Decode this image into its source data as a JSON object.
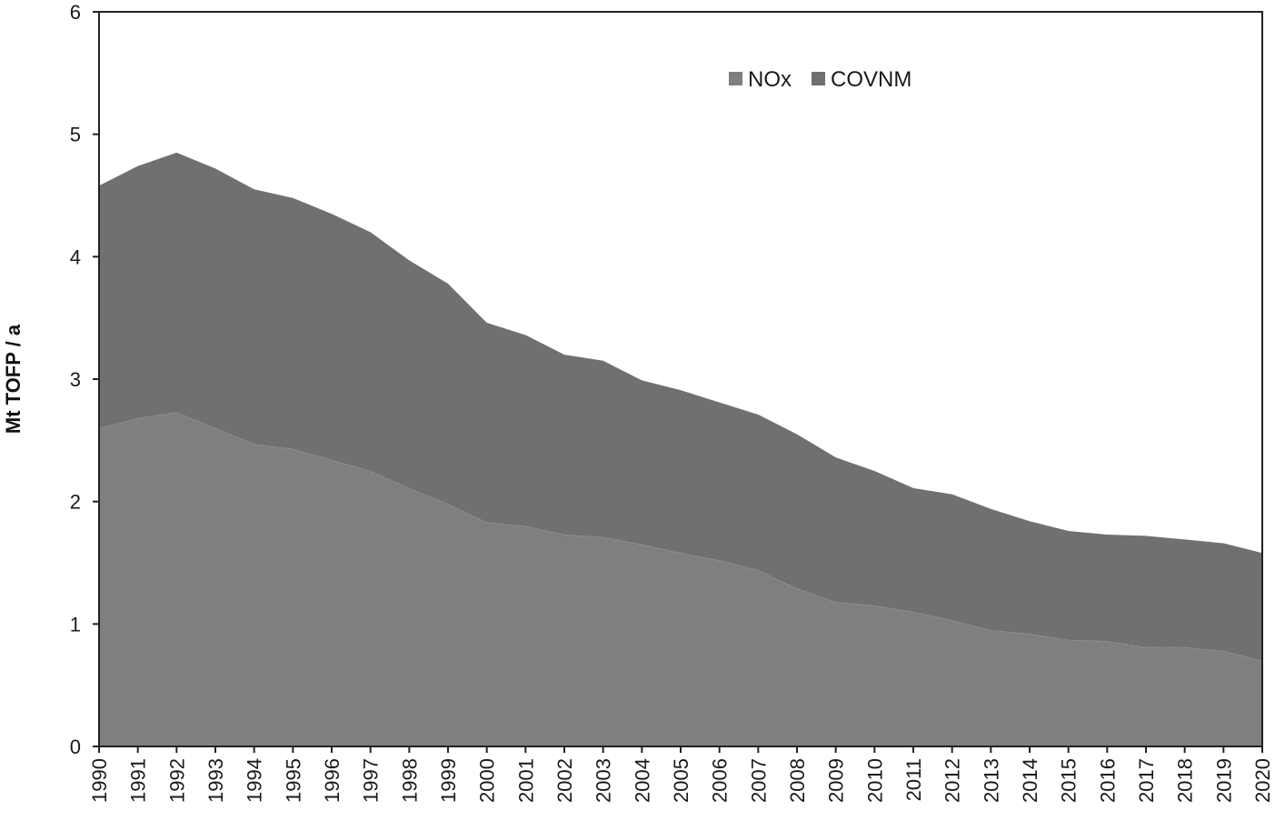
{
  "chart_data": {
    "type": "area",
    "stacked": true,
    "ylabel": "Mt TOFP / a",
    "xlabel": "",
    "ylim": [
      0,
      6
    ],
    "yticks": [
      0,
      1,
      2,
      3,
      4,
      5,
      6
    ],
    "grid": false,
    "legend_position": "top-center",
    "x": [
      "1990",
      "1991",
      "1992",
      "1993",
      "1994",
      "1995",
      "1996",
      "1997",
      "1998",
      "1999",
      "2000",
      "2001",
      "2002",
      "2003",
      "2004",
      "2005",
      "2006",
      "2007",
      "2008",
      "2009",
      "2010",
      "2011",
      "2012",
      "2013",
      "2014",
      "2015",
      "2016",
      "2017",
      "2018",
      "2019",
      "2020"
    ],
    "series": [
      {
        "name": "NOx",
        "color": "#7f7f7f",
        "values": [
          2.6,
          2.68,
          2.73,
          2.6,
          2.47,
          2.43,
          2.34,
          2.25,
          2.11,
          1.98,
          1.83,
          1.8,
          1.73,
          1.71,
          1.65,
          1.58,
          1.52,
          1.44,
          1.29,
          1.18,
          1.15,
          1.1,
          1.03,
          0.95,
          0.92,
          0.87,
          0.86,
          0.81,
          0.81,
          0.78,
          0.7
        ]
      },
      {
        "name": "COVNM",
        "color": "#707070",
        "values": [
          1.98,
          2.06,
          2.12,
          2.12,
          2.08,
          2.05,
          2.01,
          1.95,
          1.86,
          1.8,
          1.63,
          1.56,
          1.47,
          1.44,
          1.34,
          1.33,
          1.29,
          1.27,
          1.26,
          1.18,
          1.1,
          1.01,
          1.03,
          0.99,
          0.92,
          0.89,
          0.87,
          0.91,
          0.88,
          0.88,
          0.88
        ]
      }
    ]
  }
}
